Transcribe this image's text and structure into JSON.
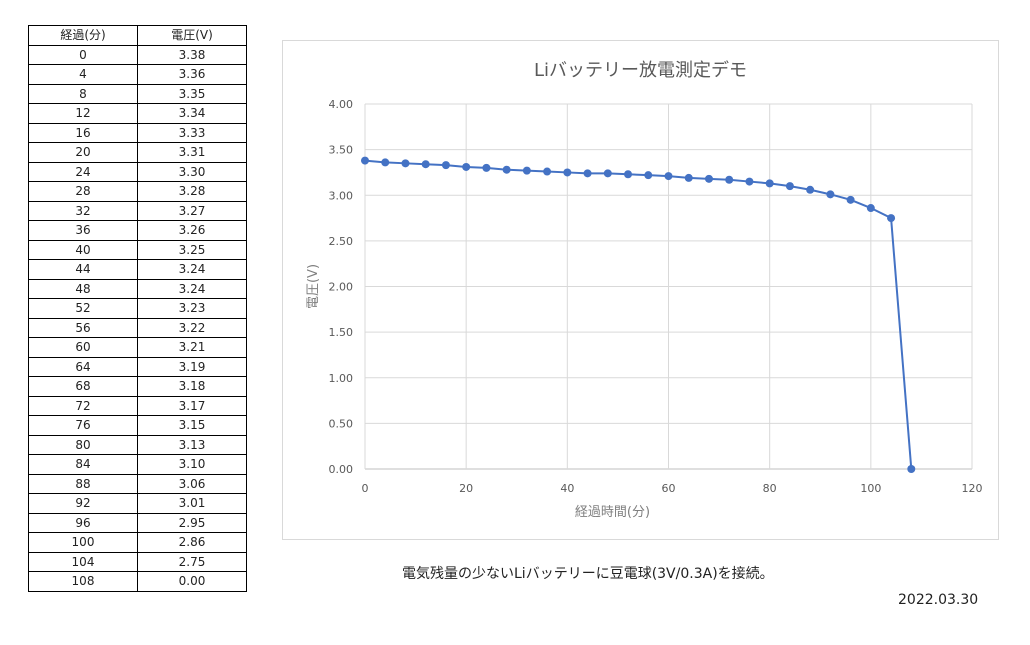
{
  "table": {
    "headers": [
      "経過(分)",
      "電圧(V)"
    ],
    "rows": [
      [
        "0",
        "3.38"
      ],
      [
        "4",
        "3.36"
      ],
      [
        "8",
        "3.35"
      ],
      [
        "12",
        "3.34"
      ],
      [
        "16",
        "3.33"
      ],
      [
        "20",
        "3.31"
      ],
      [
        "24",
        "3.30"
      ],
      [
        "28",
        "3.28"
      ],
      [
        "32",
        "3.27"
      ],
      [
        "36",
        "3.26"
      ],
      [
        "40",
        "3.25"
      ],
      [
        "44",
        "3.24"
      ],
      [
        "48",
        "3.24"
      ],
      [
        "52",
        "3.23"
      ],
      [
        "56",
        "3.22"
      ],
      [
        "60",
        "3.21"
      ],
      [
        "64",
        "3.19"
      ],
      [
        "68",
        "3.18"
      ],
      [
        "72",
        "3.17"
      ],
      [
        "76",
        "3.15"
      ],
      [
        "80",
        "3.13"
      ],
      [
        "84",
        "3.10"
      ],
      [
        "88",
        "3.06"
      ],
      [
        "92",
        "3.01"
      ],
      [
        "96",
        "2.95"
      ],
      [
        "100",
        "2.86"
      ],
      [
        "104",
        "2.75"
      ],
      [
        "108",
        "0.00"
      ]
    ]
  },
  "chart_data": {
    "type": "line",
    "title": "Liバッテリー放電測定デモ",
    "xlabel": "経過時間(分)",
    "ylabel": "電圧(V)",
    "xlim": [
      0,
      120
    ],
    "ylim": [
      0,
      4
    ],
    "x_ticks": [
      "0",
      "20",
      "40",
      "60",
      "80",
      "100",
      "120"
    ],
    "y_ticks": [
      "0.00",
      "0.50",
      "1.00",
      "1.50",
      "2.00",
      "2.50",
      "3.00",
      "3.50",
      "4.00"
    ],
    "grid": true,
    "series_color": "#4472c4",
    "x": [
      0,
      4,
      8,
      12,
      16,
      20,
      24,
      28,
      32,
      36,
      40,
      44,
      48,
      52,
      56,
      60,
      64,
      68,
      72,
      76,
      80,
      84,
      88,
      92,
      96,
      100,
      104,
      108
    ],
    "y": [
      3.38,
      3.36,
      3.35,
      3.34,
      3.33,
      3.31,
      3.3,
      3.28,
      3.27,
      3.26,
      3.25,
      3.24,
      3.24,
      3.23,
      3.22,
      3.21,
      3.19,
      3.18,
      3.17,
      3.15,
      3.13,
      3.1,
      3.06,
      3.01,
      2.95,
      2.86,
      2.75,
      0.0
    ]
  },
  "caption": "電気残量の少ないLiバッテリーに豆電球(3V/0.3A)を接続。",
  "date": "2022.03.30"
}
